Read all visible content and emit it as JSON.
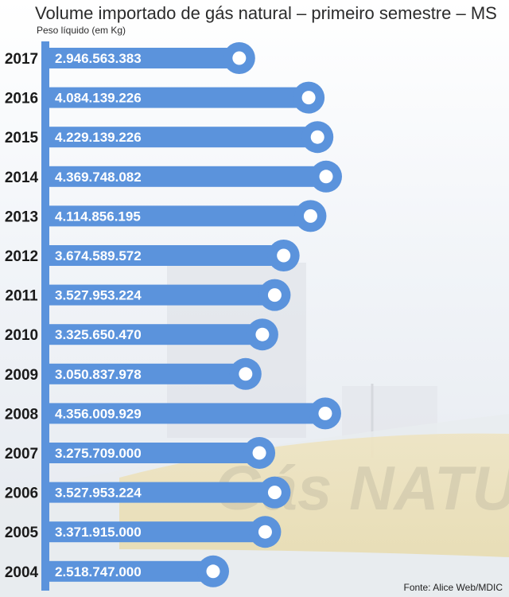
{
  "title": "Volume importado de gás natural – primeiro semestre – MS",
  "subtitle": "Peso líquido (em Kg)",
  "source": "Fonte: Alice Web/MDIC",
  "background_text": "Gás NATURAL",
  "colors": {
    "bar": "#5b93dc",
    "dot": "#ffffff",
    "label": "#ffffff",
    "year": "#1a1a1a"
  },
  "chart_data": {
    "type": "bar",
    "orientation": "horizontal",
    "title": "Volume importado de gás natural – primeiro semestre – MS",
    "subtitle": "Peso líquido (em Kg)",
    "categories": [
      "2017",
      "2016",
      "2015",
      "2014",
      "2013",
      "2012",
      "2011",
      "2010",
      "2009",
      "2008",
      "2007",
      "2006",
      "2005",
      "2004"
    ],
    "values": [
      2946563383,
      4084139226,
      4229139226,
      4369748082,
      4114856195,
      3674589572,
      3527953224,
      3325650470,
      3050837978,
      4356009929,
      3275709000,
      3527953224,
      3371915000,
      2518747000
    ],
    "value_labels": [
      "2.946.563.383",
      "4.084.139.226",
      "4.229.139.226",
      "4.369.748.082",
      "4.114.856.195",
      "3.674.589.572",
      "3.527.953.224",
      "3.325.650.470",
      "3.050.837.978",
      "4.356.009.929",
      "3.275.709.000",
      "3.527.953.224",
      "3.371.915.000",
      "2.518.747.000"
    ],
    "grid": false,
    "legend": "none"
  }
}
